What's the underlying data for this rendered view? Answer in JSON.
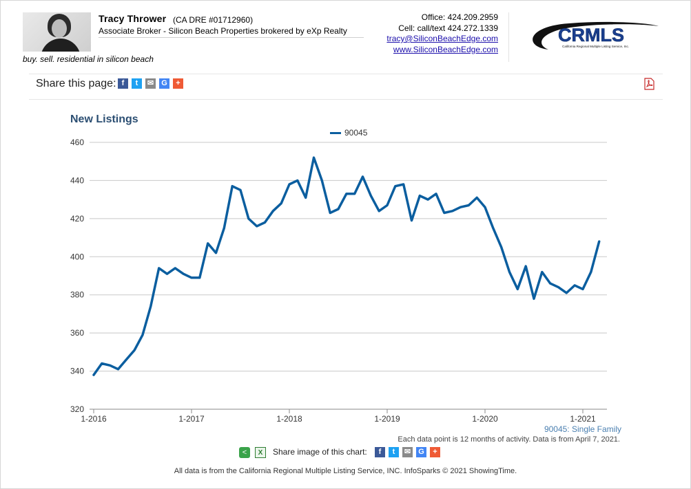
{
  "header": {
    "agent_name": "Tracy Thrower",
    "dre": "(CA DRE #01712960)",
    "title": "Associate Broker - Silicon Beach Properties brokered by eXp Realty",
    "tagline": "buy. sell. residential in silicon beach",
    "office": "Office: 424.209.2959",
    "cell": "Cell: call/text 424.272.1339",
    "email": "tracy@SiliconBeachEdge.com",
    "website": "www.SiliconBeachEdge.com",
    "logo_text": "CRMLS",
    "logo_subtext": "California Regional Multiple Listing Service, Inc."
  },
  "share_page": {
    "label": "Share this page:",
    "icons": [
      "facebook-icon",
      "twitter-icon",
      "email-icon",
      "google-icon",
      "plus-icon"
    ]
  },
  "chart_data": {
    "type": "line",
    "title": "New Listings",
    "xlabel": "",
    "ylabel": "",
    "x_tick_labels": [
      "1-2016",
      "1-2017",
      "1-2018",
      "1-2019",
      "1-2020",
      "1-2021"
    ],
    "y_tick_labels": [
      "320",
      "340",
      "360",
      "380",
      "400",
      "420",
      "440",
      "460"
    ],
    "ylim": [
      320,
      460
    ],
    "x_start": "1-2016",
    "x_interval": "monthly",
    "grid": true,
    "legend_position": "top-center",
    "series": [
      {
        "name": "90045",
        "color": "#0b5e9f",
        "values": [
          338,
          344,
          343,
          341,
          346,
          351,
          359,
          374,
          394,
          391,
          394,
          391,
          389,
          389,
          407,
          402,
          415,
          437,
          435,
          420,
          416,
          418,
          424,
          428,
          438,
          440,
          431,
          452,
          440,
          423,
          425,
          433,
          433,
          442,
          432,
          424,
          427,
          437,
          438,
          419,
          432,
          430,
          433,
          423,
          424,
          426,
          427,
          431,
          426,
          415,
          405,
          392,
          383,
          395,
          378,
          392,
          386,
          384,
          381,
          385,
          383,
          392,
          408
        ]
      }
    ]
  },
  "notes": {
    "series_caption": "90045: Single Family",
    "data_note": "Each data point is 12 months of activity. Data is from April 7, 2021."
  },
  "share_image": {
    "label": "Share image of this chart:"
  },
  "footer": {
    "text": "All data is from the California Regional Multiple Listing Service, INC. InfoSparks © 2021 ShowingTime."
  }
}
